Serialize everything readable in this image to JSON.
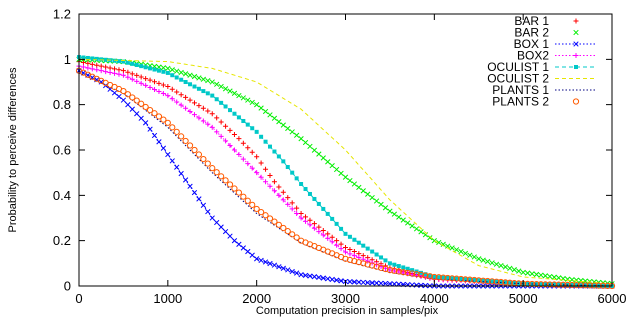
{
  "chart_data": {
    "type": "line",
    "xlabel": "Computation precision in samples/pix",
    "ylabel": "Probability to perceive differences",
    "xlim": [
      0,
      6000
    ],
    "ylim": [
      0,
      1.2
    ],
    "xticks": [
      "0",
      "1000",
      "2000",
      "3000",
      "4000",
      "5000",
      "6000"
    ],
    "yticks": [
      "0",
      "0.2",
      "0.4",
      "0.6",
      "0.8",
      "1",
      "1.2"
    ],
    "grid": false,
    "legend_position": "top-right",
    "sample_step": 50,
    "series": [
      {
        "name": "BAR 1",
        "color": "#ff0000",
        "marker": "plus",
        "line": "none",
        "points": [
          [
            0,
            0.99
          ],
          [
            500,
            0.95
          ],
          [
            1000,
            0.88
          ],
          [
            1500,
            0.76
          ],
          [
            1800,
            0.65
          ],
          [
            2000,
            0.57
          ],
          [
            2200,
            0.46
          ],
          [
            2500,
            0.32
          ],
          [
            3000,
            0.17
          ],
          [
            3500,
            0.08
          ],
          [
            4000,
            0.03
          ],
          [
            5000,
            0.01
          ],
          [
            6000,
            0.0
          ]
        ]
      },
      {
        "name": "BAR 2",
        "color": "#00ee00",
        "marker": "cross",
        "line": "none",
        "points": [
          [
            0,
            1.0
          ],
          [
            500,
            0.99
          ],
          [
            1000,
            0.96
          ],
          [
            1500,
            0.9
          ],
          [
            2000,
            0.8
          ],
          [
            2500,
            0.65
          ],
          [
            3000,
            0.48
          ],
          [
            3500,
            0.33
          ],
          [
            4000,
            0.2
          ],
          [
            4500,
            0.12
          ],
          [
            5000,
            0.06
          ],
          [
            5500,
            0.03
          ],
          [
            6000,
            0.01
          ]
        ]
      },
      {
        "name": "BOX 1",
        "color": "#0000ff",
        "marker": "cross",
        "line": "dotted",
        "points": [
          [
            0,
            0.95
          ],
          [
            250,
            0.9
          ],
          [
            500,
            0.82
          ],
          [
            750,
            0.72
          ],
          [
            1000,
            0.58
          ],
          [
            1250,
            0.44
          ],
          [
            1500,
            0.3
          ],
          [
            1750,
            0.2
          ],
          [
            2000,
            0.12
          ],
          [
            2500,
            0.05
          ],
          [
            3000,
            0.02
          ],
          [
            4000,
            0.0
          ],
          [
            6000,
            0.0
          ]
        ]
      },
      {
        "name": "BOX2",
        "color": "#ff00ff",
        "marker": "plus",
        "line": "dotted",
        "points": [
          [
            0,
            0.97
          ],
          [
            500,
            0.93
          ],
          [
            1000,
            0.84
          ],
          [
            1500,
            0.7
          ],
          [
            1700,
            0.62
          ],
          [
            2000,
            0.5
          ],
          [
            2500,
            0.3
          ],
          [
            3000,
            0.15
          ],
          [
            3500,
            0.07
          ],
          [
            4000,
            0.03
          ],
          [
            5000,
            0.01
          ],
          [
            6000,
            0.0
          ]
        ]
      },
      {
        "name": "OCULIST 1",
        "color": "#00c8c8",
        "marker": "square",
        "line": "dashed",
        "points": [
          [
            0,
            1.01
          ],
          [
            500,
            0.99
          ],
          [
            1000,
            0.94
          ],
          [
            1500,
            0.84
          ],
          [
            2000,
            0.68
          ],
          [
            2300,
            0.55
          ],
          [
            2500,
            0.45
          ],
          [
            3000,
            0.23
          ],
          [
            3500,
            0.1
          ],
          [
            4000,
            0.04
          ],
          [
            5000,
            0.01
          ],
          [
            6000,
            0.0
          ]
        ]
      },
      {
        "name": "OCULIST 2",
        "color": "#e6e600",
        "marker": "none",
        "line": "dashed",
        "points": [
          [
            0,
            1.0
          ],
          [
            1000,
            0.99
          ],
          [
            1500,
            0.96
          ],
          [
            2000,
            0.9
          ],
          [
            2500,
            0.78
          ],
          [
            3000,
            0.6
          ],
          [
            3500,
            0.38
          ],
          [
            4000,
            0.2
          ],
          [
            4500,
            0.09
          ],
          [
            5000,
            0.04
          ],
          [
            6000,
            0.01
          ]
        ]
      },
      {
        "name": "PLANTS 1",
        "color": "#000080",
        "marker": "none",
        "line": "dotted",
        "points": [
          [
            0,
            0.94
          ],
          [
            500,
            0.85
          ],
          [
            1000,
            0.7
          ],
          [
            1500,
            0.5
          ],
          [
            2000,
            0.32
          ],
          [
            2500,
            0.19
          ],
          [
            3000,
            0.11
          ],
          [
            3500,
            0.06
          ],
          [
            4000,
            0.03
          ],
          [
            5000,
            0.01
          ],
          [
            6000,
            0.0
          ]
        ]
      },
      {
        "name": "PLANTS 2",
        "color": "#ff5a00",
        "marker": "circle",
        "line": "none",
        "points": [
          [
            0,
            0.95
          ],
          [
            500,
            0.86
          ],
          [
            1000,
            0.72
          ],
          [
            1500,
            0.52
          ],
          [
            2000,
            0.34
          ],
          [
            2500,
            0.2
          ],
          [
            3000,
            0.12
          ],
          [
            3500,
            0.07
          ],
          [
            4000,
            0.04
          ],
          [
            5000,
            0.01
          ],
          [
            6000,
            0.0
          ]
        ]
      }
    ]
  }
}
